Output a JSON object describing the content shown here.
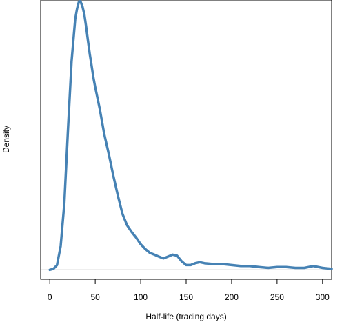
{
  "chart_data": {
    "type": "line",
    "title": "",
    "xlabel": "Half-life (trading days)",
    "ylabel": "Density",
    "xlim": [
      -10,
      310
    ],
    "ylim": [
      -0.001,
      0.0285
    ],
    "x_ticks": [
      0,
      50,
      100,
      150,
      200,
      250,
      300
    ],
    "y_ticks_shown": false,
    "grid": false,
    "legend": "none",
    "baseline": 0,
    "colors": {
      "line": "#4682b4",
      "baseline": "#bebebe"
    },
    "series": [
      {
        "x": [
          0,
          4,
          8,
          12,
          16,
          20,
          24,
          28,
          30,
          32,
          33,
          34,
          36,
          38,
          40,
          42,
          44,
          46,
          48,
          50,
          55,
          60,
          65,
          70,
          75,
          80,
          85,
          90,
          95,
          100,
          105,
          110,
          115,
          120,
          125,
          130,
          135,
          140,
          145,
          150,
          155,
          160,
          165,
          170,
          180,
          190,
          200,
          210,
          220,
          230,
          240,
          250,
          260,
          270,
          280,
          290,
          300,
          310
        ],
        "y": [
          0.0,
          0.0001,
          0.0005,
          0.0025,
          0.007,
          0.0148,
          0.022,
          0.0265,
          0.0276,
          0.0283,
          0.0284,
          0.0283,
          0.0278,
          0.027,
          0.0257,
          0.0242,
          0.0228,
          0.0216,
          0.0203,
          0.0193,
          0.017,
          0.0143,
          0.0122,
          0.0099,
          0.0078,
          0.0059,
          0.0047,
          0.004,
          0.0034,
          0.0027,
          0.0022,
          0.0018,
          0.0016,
          0.0014,
          0.0012,
          0.0014,
          0.0016,
          0.0015,
          0.0009,
          0.0005,
          0.0005,
          0.0007,
          0.0008,
          0.0007,
          0.0006,
          0.0006,
          0.0005,
          0.0004,
          0.0004,
          0.0003,
          0.0002,
          0.0003,
          0.0003,
          0.0002,
          0.0002,
          0.0004,
          0.0002,
          0.0001
        ]
      }
    ]
  }
}
